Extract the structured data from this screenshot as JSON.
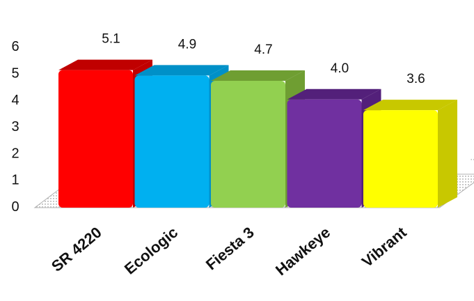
{
  "chart_data": {
    "type": "bar",
    "title": "",
    "xlabel": "",
    "ylabel": "",
    "categories": [
      "SR 4220",
      "Ecologic",
      "Fiesta 3",
      "Hawkeye",
      "Vibrant"
    ],
    "values": [
      5.1,
      4.9,
      4.7,
      4.0,
      3.6
    ],
    "value_labels": [
      "5.1",
      "4.9",
      "4.7",
      "4.0",
      "3.6"
    ],
    "ylim": [
      0,
      6
    ],
    "yticks": [
      "0",
      "1",
      "2",
      "3",
      "4",
      "5",
      "6"
    ],
    "grid": false,
    "legend": "none",
    "colors": [
      "#ff0000",
      "#00b0f0",
      "#92d050",
      "#7030a0",
      "#ffff00"
    ],
    "shade_colors": [
      "#c00000",
      "#0090c8",
      "#6f9e32",
      "#53207a",
      "#c8c800"
    ]
  }
}
